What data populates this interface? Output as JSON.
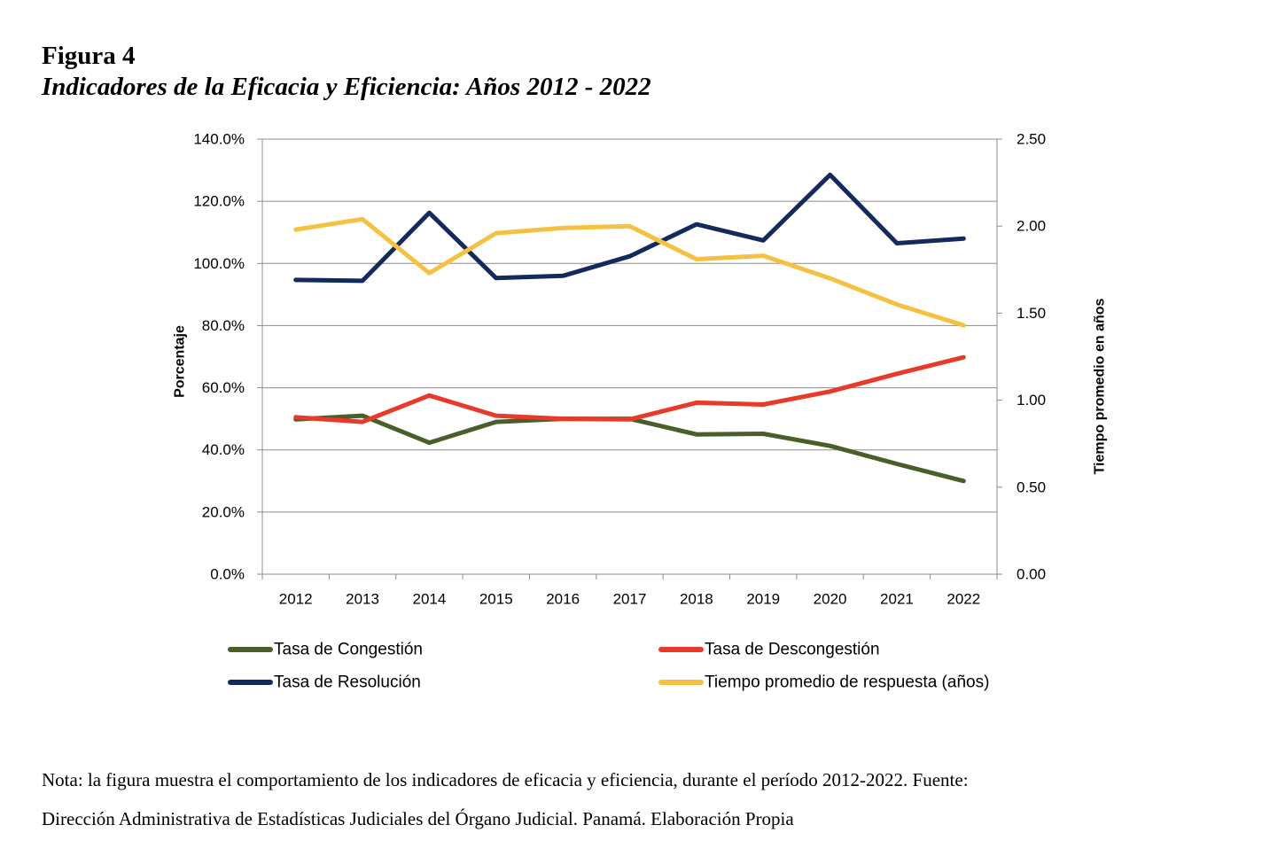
{
  "figure": {
    "number": "Figura 4",
    "title": "Indicadores de la Eficacia y Eficiencia: Años 2012 - 2022"
  },
  "note": {
    "line1": "Nota:  la figura muestra el comportamiento de los indicadores de eficacia y eficiencia, durante el período 2012-2022. Fuente:",
    "line2": "Dirección Administrativa de Estadísticas Judiciales del Órgano Judicial. Panamá. Elaboración Propia"
  },
  "chart_data": {
    "type": "line",
    "title": "",
    "xlabel": "",
    "ylabel": "Porcentaje",
    "y2label": "Tiempo promedio en años",
    "categories": [
      "2012",
      "2013",
      "2014",
      "2015",
      "2016",
      "2017",
      "2018",
      "2019",
      "2020",
      "2021",
      "2022"
    ],
    "ylim": [
      0,
      140
    ],
    "y_ticks": [
      "0.0%",
      "20.0%",
      "40.0%",
      "60.0%",
      "80.0%",
      "100.0%",
      "120.0%",
      "140.0%"
    ],
    "y2lim": [
      0,
      2.5
    ],
    "y2_ticks": [
      "0.00",
      "0.50",
      "1.00",
      "1.50",
      "2.00",
      "2.50"
    ],
    "grid": true,
    "legend_position": "bottom",
    "series": [
      {
        "name": "Tasa de Congestión",
        "axis": "left",
        "color": "#4a5e2a",
        "values": [
          49.8,
          51.0,
          42.3,
          49.0,
          50.0,
          50.0,
          45.0,
          45.2,
          41.3,
          35.5,
          30.0
        ]
      },
      {
        "name": "Tasa de Descongestión",
        "axis": "left",
        "color": "#e8392a",
        "values": [
          50.5,
          49.0,
          57.5,
          51.0,
          50.0,
          49.8,
          55.2,
          54.6,
          58.8,
          64.5,
          69.8
        ]
      },
      {
        "name": "Tasa de Resolución",
        "axis": "left",
        "color": "#152a5c",
        "values": [
          94.7,
          94.4,
          116.3,
          95.3,
          96.0,
          102.3,
          112.6,
          107.4,
          128.5,
          106.5,
          108.0
        ]
      },
      {
        "name": "Tiempo promedio de respuesta (años)",
        "axis": "right",
        "color": "#f5c143",
        "values": [
          1.98,
          2.04,
          1.73,
          1.96,
          1.99,
          2.0,
          1.81,
          1.83,
          1.7,
          1.55,
          1.43
        ]
      }
    ]
  }
}
